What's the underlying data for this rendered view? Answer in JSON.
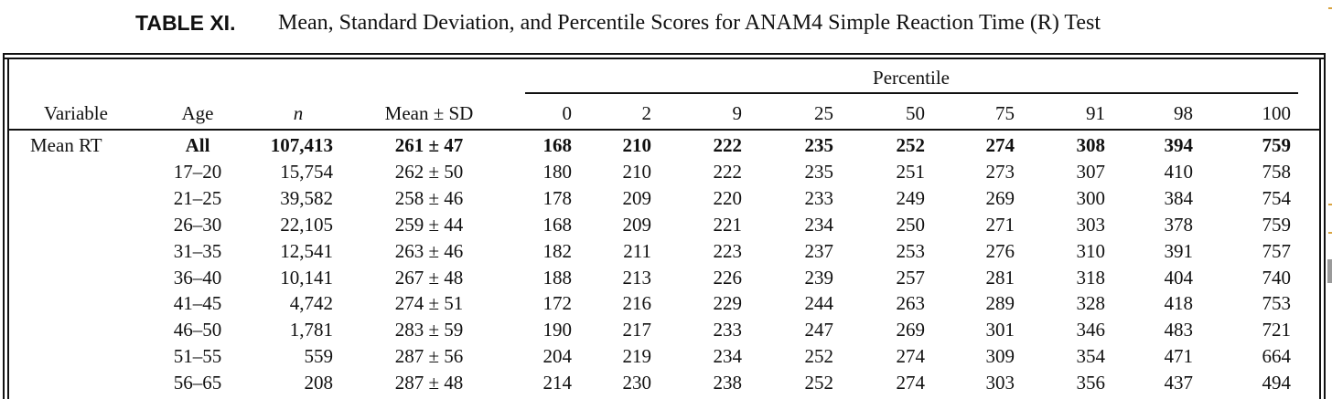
{
  "caption": {
    "label": "TABLE XI.",
    "title": "Mean, Standard Deviation, and Percentile Scores for ANAM4 Simple Reaction Time (R) Test"
  },
  "header": {
    "group": "Percentile",
    "variable": "Variable",
    "age": "Age",
    "n": "n",
    "mean_sd": "Mean ± SD",
    "percentiles": [
      "0",
      "2",
      "9",
      "25",
      "50",
      "75",
      "91",
      "98",
      "100"
    ]
  },
  "variable_label": "Mean RT",
  "rows": [
    {
      "age": "All",
      "n": "107,413",
      "mean_sd": "261 ± 47",
      "p": [
        "168",
        "210",
        "222",
        "235",
        "252",
        "274",
        "308",
        "394",
        "759"
      ]
    },
    {
      "age": "17–20",
      "n": "15,754",
      "mean_sd": "262 ± 50",
      "p": [
        "180",
        "210",
        "222",
        "235",
        "251",
        "273",
        "307",
        "410",
        "758"
      ]
    },
    {
      "age": "21–25",
      "n": "39,582",
      "mean_sd": "258 ± 46",
      "p": [
        "178",
        "209",
        "220",
        "233",
        "249",
        "269",
        "300",
        "384",
        "754"
      ]
    },
    {
      "age": "26–30",
      "n": "22,105",
      "mean_sd": "259 ± 44",
      "p": [
        "168",
        "209",
        "221",
        "234",
        "250",
        "271",
        "303",
        "378",
        "759"
      ]
    },
    {
      "age": "31–35",
      "n": "12,541",
      "mean_sd": "263 ± 46",
      "p": [
        "182",
        "211",
        "223",
        "237",
        "253",
        "276",
        "310",
        "391",
        "757"
      ]
    },
    {
      "age": "36–40",
      "n": "10,141",
      "mean_sd": "267 ± 48",
      "p": [
        "188",
        "213",
        "226",
        "239",
        "257",
        "281",
        "318",
        "404",
        "740"
      ]
    },
    {
      "age": "41–45",
      "n": "4,742",
      "mean_sd": "274 ± 51",
      "p": [
        "172",
        "216",
        "229",
        "244",
        "263",
        "289",
        "328",
        "418",
        "753"
      ]
    },
    {
      "age": "46–50",
      "n": "1,781",
      "mean_sd": "283 ± 59",
      "p": [
        "190",
        "217",
        "233",
        "247",
        "269",
        "301",
        "346",
        "483",
        "721"
      ]
    },
    {
      "age": "51–55",
      "n": "559",
      "mean_sd": "287 ± 56",
      "p": [
        "204",
        "219",
        "234",
        "252",
        "274",
        "309",
        "354",
        "471",
        "664"
      ]
    },
    {
      "age": "56–65",
      "n": "208",
      "mean_sd": "287 ± 48",
      "p": [
        "214",
        "230",
        "238",
        "252",
        "274",
        "303",
        "356",
        "437",
        "494"
      ]
    }
  ]
}
